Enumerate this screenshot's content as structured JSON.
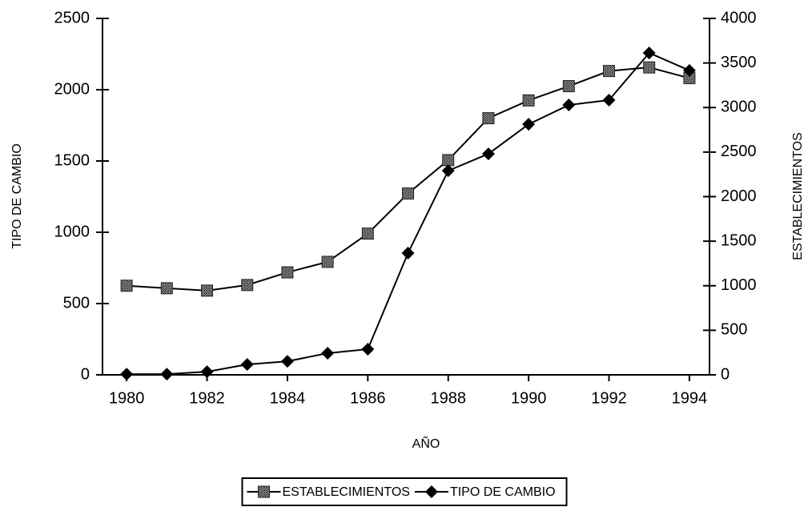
{
  "chart_data": {
    "type": "line",
    "x": [
      1980,
      1981,
      1982,
      1983,
      1984,
      1985,
      1986,
      1987,
      1988,
      1989,
      1990,
      1991,
      1992,
      1993,
      1994
    ],
    "series": [
      {
        "name": "ESTABLECIMIENTOS",
        "color": "#000000",
        "marker": "square",
        "axis": "y2",
        "values": [
          1000,
          972,
          945,
          1008,
          1150,
          1268,
          1585,
          2035,
          2410,
          2880,
          3080,
          3240,
          3410,
          3450,
          3330
        ]
      },
      {
        "name": "TIPO DE CAMBIO",
        "color": "#000000",
        "marker": "diamond",
        "values": [
          5,
          5,
          22,
          73,
          95,
          152,
          180,
          854,
          1432,
          1550,
          1758,
          1893,
          1927,
          2258,
          2135
        ]
      }
    ],
    "xlabel": "AÑO",
    "ylabel": "TIPO DE CAMBIO",
    "y2label": "ESTABLECIMIENTOS",
    "xlim": [
      1979.4,
      1994.5
    ],
    "xticks": [
      1980,
      1982,
      1984,
      1986,
      1988,
      1990,
      1992,
      1994
    ],
    "ylim": [
      0,
      2500
    ],
    "yticks": [
      0,
      500,
      1000,
      1500,
      2000,
      2500
    ],
    "y2lim": [
      0,
      4000
    ],
    "y2ticks": [
      0,
      500,
      1000,
      1500,
      2000,
      2500,
      3000,
      3500,
      4000
    ],
    "legend": "bottom"
  }
}
